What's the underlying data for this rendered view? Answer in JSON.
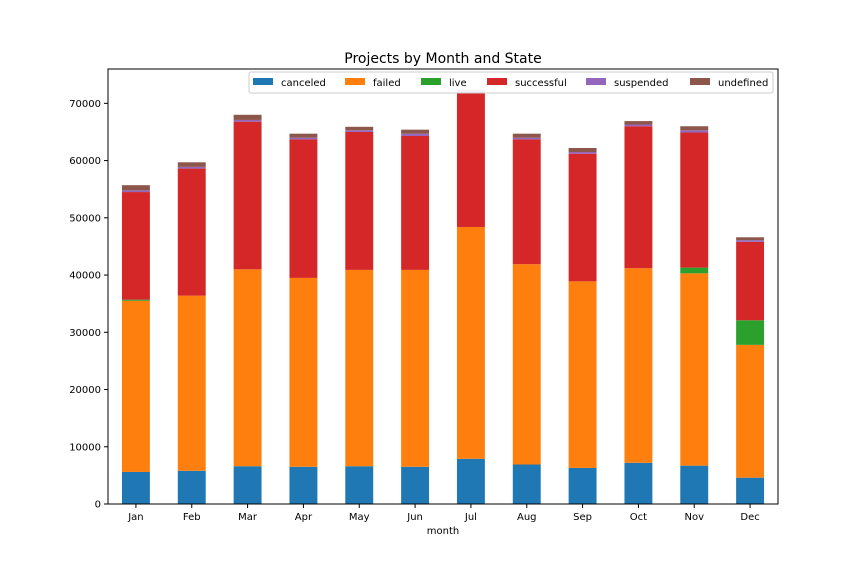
{
  "chart_data": {
    "type": "bar",
    "stacked": true,
    "title": "Projects by Month and State",
    "xlabel": "month",
    "ylabel": "",
    "ylim": [
      0,
      76000
    ],
    "yticks": [
      0,
      10000,
      20000,
      30000,
      40000,
      50000,
      60000,
      70000
    ],
    "grid": false,
    "legend_position": "top-right",
    "categories": [
      "Jan",
      "Feb",
      "Mar",
      "Apr",
      "May",
      "Jun",
      "Jul",
      "Aug",
      "Sep",
      "Oct",
      "Nov",
      "Dec"
    ],
    "series": [
      {
        "name": "canceled",
        "color": "#1f77b4",
        "values": [
          5600,
          5800,
          6600,
          6500,
          6600,
          6500,
          7900,
          6900,
          6300,
          7200,
          6700,
          4600
        ]
      },
      {
        "name": "failed",
        "color": "#ff7f0e",
        "values": [
          29900,
          30600,
          34400,
          33000,
          34300,
          34400,
          40500,
          35000,
          32600,
          34000,
          33600,
          23200
        ]
      },
      {
        "name": "live",
        "color": "#2ca02c",
        "values": [
          200,
          0,
          0,
          0,
          0,
          0,
          0,
          0,
          0,
          0,
          1000,
          4300
        ]
      },
      {
        "name": "successful",
        "color": "#d62728",
        "values": [
          18800,
          22200,
          25800,
          24200,
          24100,
          23400,
          23500,
          21800,
          22300,
          24800,
          23600,
          13700
        ]
      },
      {
        "name": "suspended",
        "color": "#9467bd",
        "values": [
          300,
          300,
          300,
          300,
          300,
          400,
          500,
          300,
          300,
          300,
          400,
          300
        ]
      },
      {
        "name": "undefined",
        "color": "#8c564b",
        "values": [
          900,
          800,
          900,
          700,
          600,
          700,
          0,
          700,
          700,
          600,
          700,
          500
        ]
      }
    ]
  }
}
